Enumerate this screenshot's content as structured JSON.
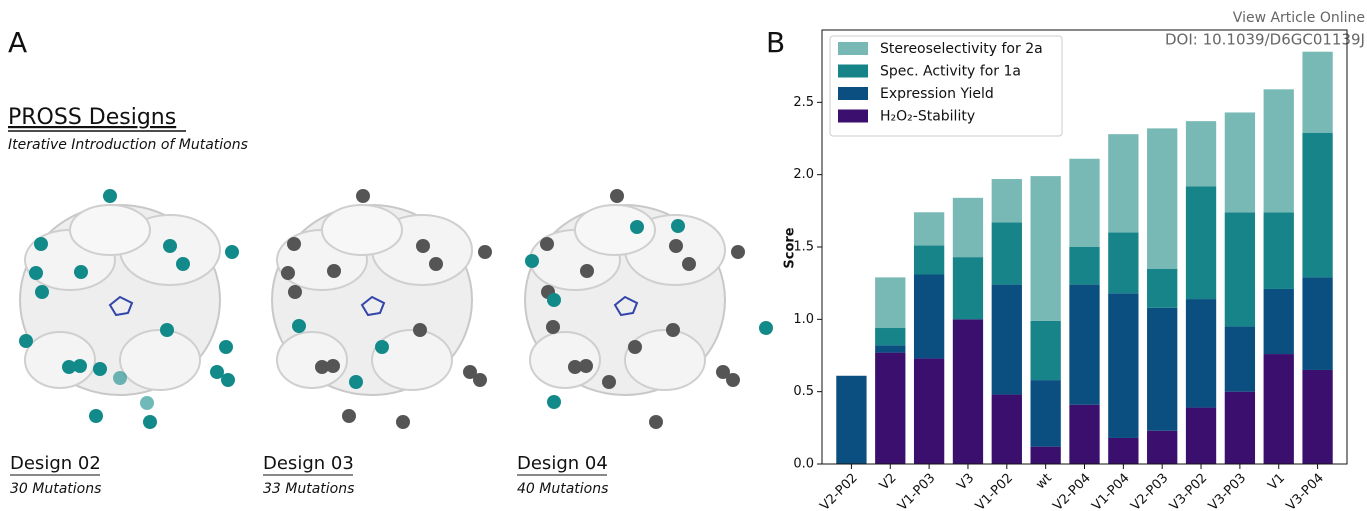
{
  "overlay": {
    "link": "View Article Online",
    "doi": "DOI: 10.1039/D6GC01139J"
  },
  "panel_a": {
    "label": "A",
    "title": "PROSS Designs",
    "subtitle": "Iterative Introduction of Mutations",
    "designs": [
      {
        "name": "Design 02",
        "mutations": "30 Mutations"
      },
      {
        "name": "Design 03",
        "mutations": "33 Mutations"
      },
      {
        "name": "Design 04",
        "mutations": "40 Mutations"
      }
    ]
  },
  "chart_data": {
    "type": "stacked-bar",
    "panel_label": "B",
    "y_label": "Score",
    "categories": [
      "V2-P02",
      "V2",
      "V1-P03",
      "V3",
      "V1-P02",
      "wt",
      "V2-P04",
      "V1-P04",
      "V2-P03",
      "V3-P02",
      "V3-P03",
      "V1",
      "V3-P04"
    ],
    "series": [
      {
        "name": "H₂O₂-Stability",
        "color": "#3a0f6e",
        "values": [
          0,
          0.77,
          0.73,
          1.0,
          0.48,
          0.12,
          0.41,
          0.18,
          0.23,
          0.39,
          0.5,
          0.76,
          0.65
        ]
      },
      {
        "name": "Expression Yield",
        "color": "#0b4f80",
        "values": [
          0.61,
          0.05,
          0.58,
          0,
          0.76,
          0.46,
          0.83,
          1.0,
          0.85,
          0.75,
          0.45,
          0.45,
          0.64
        ]
      },
      {
        "name": "Spec. Activity for 1a",
        "color": "#168489",
        "values": [
          0,
          0.12,
          0.2,
          0.43,
          0.43,
          0.41,
          0.26,
          0.42,
          0.27,
          0.78,
          0.79,
          0.53,
          1.0
        ]
      },
      {
        "name": "Stereoselectivity for 2a",
        "color": "#79b9b5",
        "values": [
          0,
          0.35,
          0.23,
          0.41,
          0.3,
          1.0,
          0.61,
          0.68,
          0.97,
          0.45,
          0.69,
          0.85,
          0.56
        ]
      }
    ],
    "ylim": [
      0,
      3.0
    ],
    "yticks": [
      {
        "value": 0,
        "label": "0.0"
      },
      {
        "value": 0.5,
        "label": "0.5"
      },
      {
        "value": 1,
        "label": "1.0"
      },
      {
        "value": 1.5,
        "label": "1.5"
      },
      {
        "value": 2,
        "label": "2.0"
      },
      {
        "value": 2.5,
        "label": "2.5"
      }
    ],
    "legend": "upper left"
  }
}
